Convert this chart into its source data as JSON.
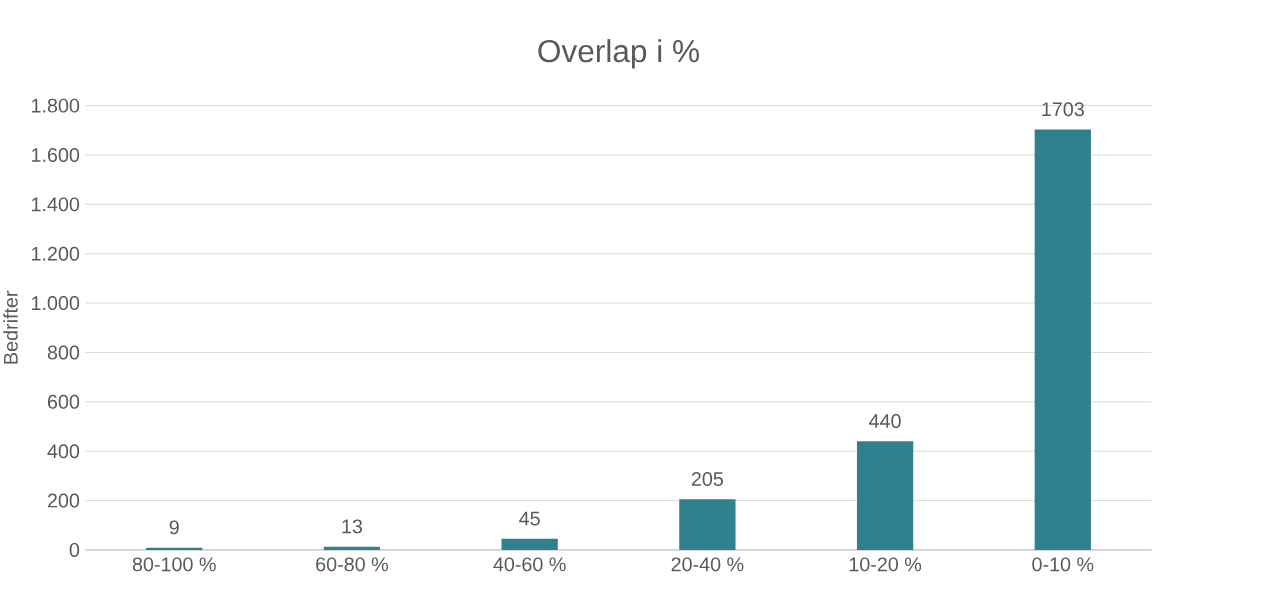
{
  "chart_data": {
    "type": "bar",
    "title": "Overlap i %",
    "ylabel": "Bedrifter",
    "categories": [
      "80-100 %",
      "60-80 %",
      "40-60 %",
      "20-40 %",
      "10-20 %",
      "0-10 %"
    ],
    "values": [
      9,
      13,
      45,
      205,
      440,
      1703
    ],
    "color": "#31808f",
    "ylim": [
      0,
      1800
    ],
    "yticks": [
      0,
      200,
      400,
      600,
      800,
      {
        "value": 1000,
        "label": "1.000"
      },
      {
        "value": 1200,
        "label": "1.200"
      },
      {
        "value": 1400,
        "label": "1.400"
      },
      {
        "value": 1600,
        "label": "1.600"
      },
      {
        "value": 1800,
        "label": "1.800"
      }
    ],
    "grid": "y",
    "data_labels": true
  }
}
